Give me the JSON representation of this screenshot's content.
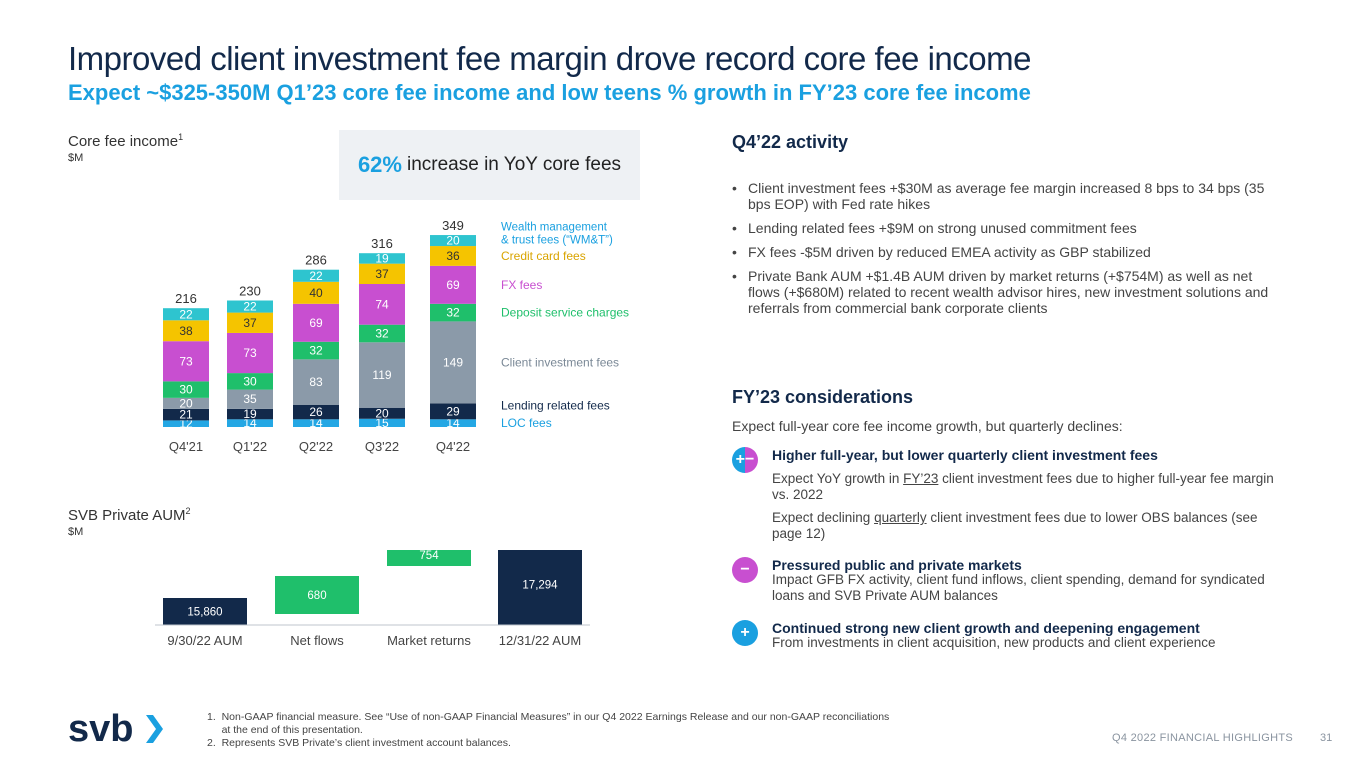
{
  "title": "Improved client investment fee margin drove record core fee income",
  "subtitle": "Expect ~$325-350M Q1’23 core fee income and low teens % growth in FY’23 core fee income",
  "core_fee": {
    "label": "Core fee income",
    "sup": "1",
    "unit": "$M"
  },
  "callout": {
    "big": "62%",
    "text": "increase in YoY core fees"
  },
  "aum": {
    "label": "SVB Private AUM",
    "sup": "2",
    "unit": "$M"
  },
  "colors": {
    "navy": "#12294a",
    "sky": "#1aa0e0",
    "teal": "#2ec4cf",
    "yellow": "#f5c400",
    "magenta": "#c84fd0",
    "green": "#1fbf6b",
    "slate": "#8b9aa9",
    "lending": "#12294a",
    "loc": "#24a7e4"
  },
  "chart_data": [
    {
      "type": "bar",
      "stacked": true,
      "categories": [
        "Q4'21",
        "Q1'22",
        "Q2'22",
        "Q3'22",
        "Q4'22"
      ],
      "totals": [
        "216",
        "230",
        "286",
        "316",
        "349"
      ],
      "series": [
        {
          "name": "LOC fees",
          "color": "#24a7e4",
          "label_color": "#ffffff",
          "values": [
            12,
            14,
            14,
            15,
            14
          ]
        },
        {
          "name": "Lending related fees",
          "color": "#12294a",
          "label_color": "#ffffff",
          "values": [
            21,
            19,
            26,
            20,
            29
          ]
        },
        {
          "name": "Client investment fees",
          "color": "#8b9aa9",
          "label_color": "#ffffff",
          "values": [
            20,
            35,
            83,
            119,
            149
          ]
        },
        {
          "name": "Deposit service charges",
          "color": "#1fbf6b",
          "label_color": "#ffffff",
          "values": [
            30,
            30,
            32,
            32,
            32
          ]
        },
        {
          "name": "FX fees",
          "color": "#c84fd0",
          "label_color": "#ffffff",
          "values": [
            73,
            73,
            69,
            74,
            69
          ]
        },
        {
          "name": "Credit card fees",
          "color": "#f5c400",
          "label_color": "#333333",
          "values": [
            38,
            37,
            40,
            37,
            36
          ]
        },
        {
          "name": "Wealth management & trust fees (“WM&T”)",
          "color": "#2ec4cf",
          "label_color": "#ffffff",
          "values": [
            22,
            22,
            22,
            19,
            20
          ]
        }
      ],
      "ylim": [
        0,
        360
      ]
    },
    {
      "type": "bar",
      "waterfall": true,
      "categories": [
        "9/30/22 AUM",
        "Net flows",
        "Market returns",
        "12/31/22 AUM"
      ],
      "values": [
        15860,
        680,
        754,
        17294
      ],
      "labels": [
        "15,860",
        "680",
        "754",
        "17,294"
      ],
      "colors": [
        "#12294a",
        "#1fbf6b",
        "#1fbf6b",
        "#12294a"
      ]
    }
  ],
  "activity": {
    "heading": "Q4’22 activity",
    "bullets": [
      "Client investment fees +$30M as average fee margin increased 8 bps to 34 bps (35 bps EOP) with Fed rate hikes",
      "Lending related fees +$9M on strong unused commitment fees",
      "FX fees -$5M driven by reduced EMEA activity as GBP stabilized",
      "Private Bank AUM +$1.4B AUM driven by market returns (+$754M) as well as net flows (+$680M) related to recent wealth advisor hires, new investment solutions and referrals from commercial bank corporate clients"
    ]
  },
  "considerations": {
    "heading": "FY’23 considerations",
    "intro": "Expect full-year core fee income growth, but quarterly declines:",
    "items": [
      {
        "icon": "+−",
        "title": "Higher full-year, but lower quarterly client investment fees",
        "p1_pre": "Expect YoY growth in ",
        "p1_u": "FY’23",
        "p1_post": " client investment fees due to higher full-year fee margin vs. 2022",
        "p2_pre": "Expect declining ",
        "p2_u": "quarterly",
        "p2_post": " client investment fees due to lower OBS balances (see page 12)"
      },
      {
        "icon": "−",
        "title": "Pressured public and private markets",
        "text": "Impact GFB FX activity, client fund inflows, client spending, demand for syndicated loans and SVB Private AUM balances"
      },
      {
        "icon": "+",
        "title": "Continued strong new client growth and deepening engagement",
        "text": "From investments in client acquisition, new products and client experience"
      }
    ]
  },
  "footnotes": [
    "1.  Non-GAAP financial measure. See “Use of non-GAAP Financial Measures” in our Q4 2022 Earnings Release and our non-GAAP reconciliations",
    "     at the end of this presentation.",
    "2.  Represents SVB Private’s client investment account balances."
  ],
  "footer": {
    "tag": "Q4 2022 FINANCIAL HIGHLIGHTS",
    "page": "31"
  },
  "logo": {
    "text": "svb"
  }
}
